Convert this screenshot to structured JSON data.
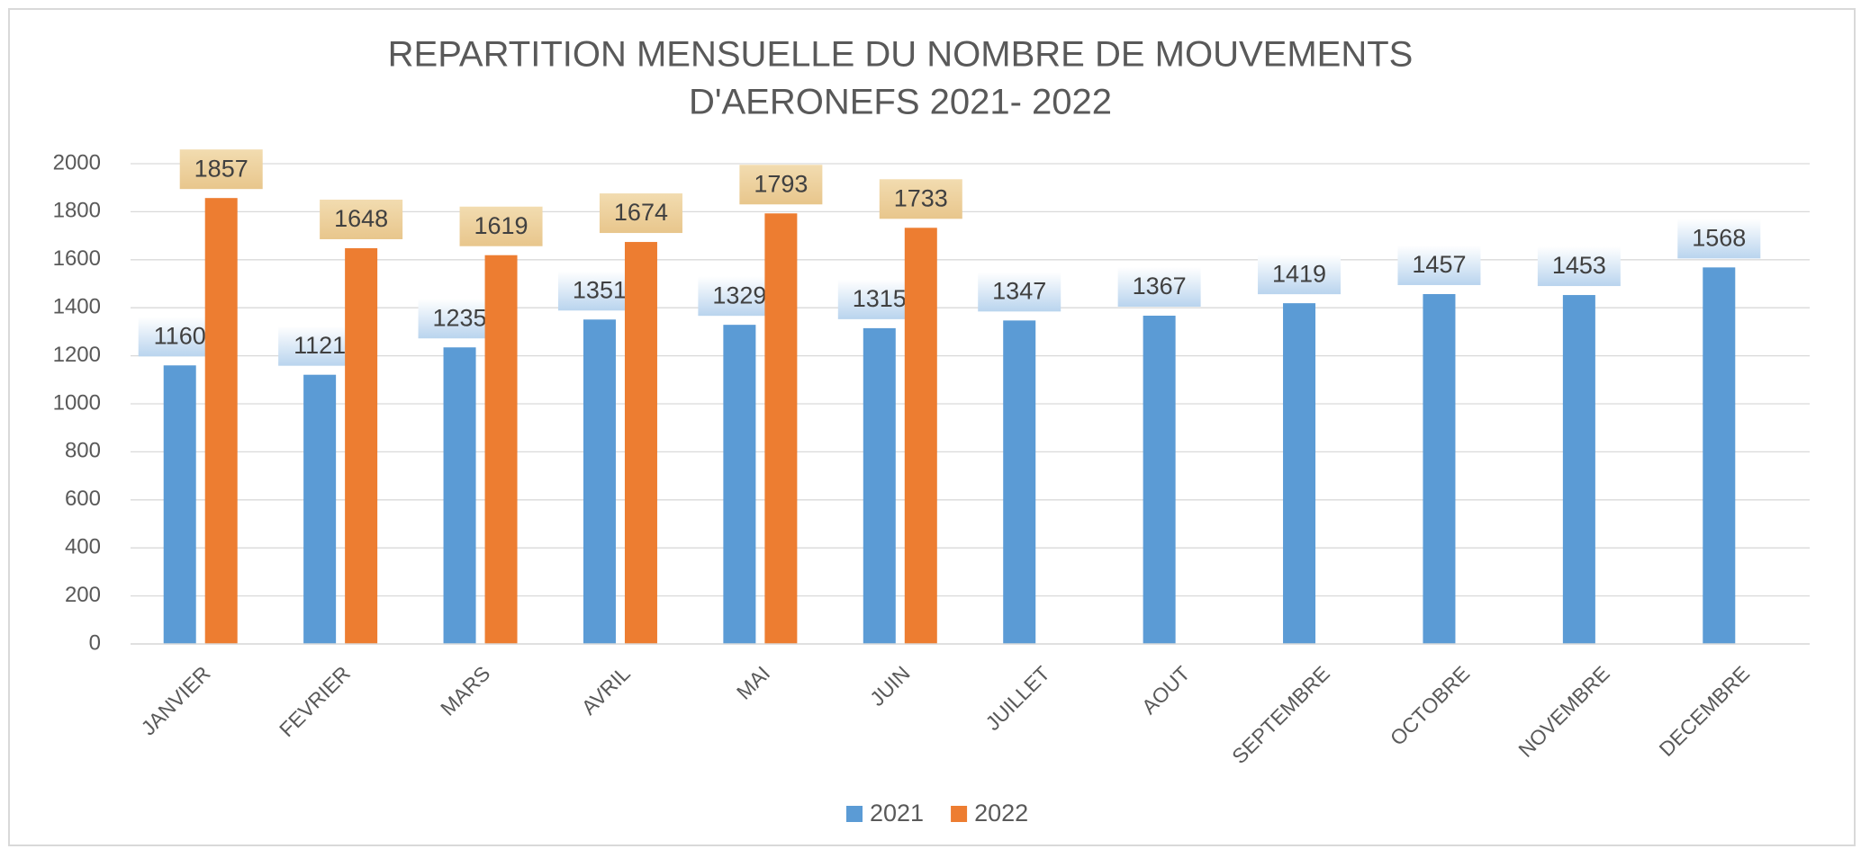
{
  "chart_data": {
    "type": "bar",
    "title": [
      "REPARTITION MENSUELLE DU NOMBRE DE MOUVEMENTS",
      "D'AERONEFS 2021- 2022"
    ],
    "categories": [
      "JANVIER",
      "FEVRIER",
      "MARS",
      "AVRIL",
      "MAI",
      "JUIN",
      "JUILLET",
      "AOUT",
      "SEPTEMBRE",
      "OCTOBRE",
      "NOVEMBRE",
      "DECEMBRE"
    ],
    "series": [
      {
        "name": "2021",
        "color": "#5b9bd5",
        "values": [
          1160,
          1121,
          1235,
          1351,
          1329,
          1315,
          1347,
          1367,
          1419,
          1457,
          1453,
          1568
        ]
      },
      {
        "name": "2022",
        "color": "#ed7d31",
        "values": [
          1857,
          1648,
          1619,
          1674,
          1793,
          1733,
          null,
          null,
          null,
          null,
          null,
          null
        ]
      }
    ],
    "ylim": [
      0,
      2000
    ],
    "yticks": [
      0,
      200,
      400,
      600,
      800,
      1000,
      1200,
      1400,
      1600,
      1800,
      2000
    ],
    "grid": true,
    "legend": "bottom"
  }
}
